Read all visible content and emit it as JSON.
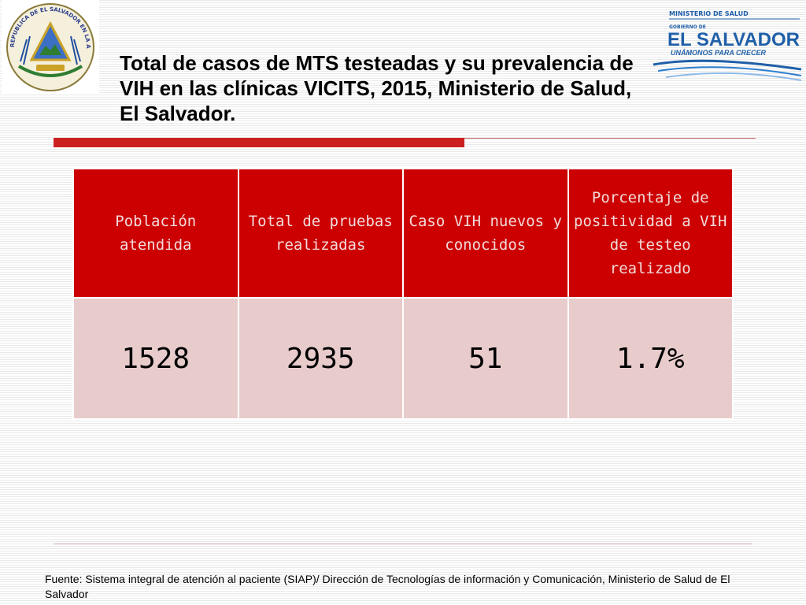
{
  "slide": {
    "title": "Total de casos de MTS testeadas  y su prevalencia de VIH en las clínicas VICITS, 2015, Ministerio de Salud, El Salvador.",
    "source": "Fuente: Sistema integral de atención al paciente (SIAP)/ Dirección de Tecnologías de información y Comunicación, Ministerio de Salud de El Salvador"
  },
  "logos": {
    "left": {
      "icon": "coat-of-arms-el-salvador",
      "text": "REPUBLICA DE EL SALVADOR EN LA AMERICA CENTRAL"
    },
    "right": {
      "ministry": "MINISTERIO DE SALUD",
      "gobierno": "GOBIERNO DE",
      "country": "EL SALVADOR",
      "slogan": "UNÁMONOS PARA CRECER"
    }
  },
  "table": {
    "headers": [
      "Población atendida",
      "Total de pruebas realizadas",
      "Caso VIH nuevos y conocidos",
      "Porcentaje de positividad  a VIH de testeo realizado"
    ],
    "row": [
      "1528",
      "2935",
      "51",
      "1.7%"
    ]
  },
  "colors": {
    "header_bg": "#cc0000",
    "header_text": "#f2dada",
    "cell_bg": "#e8cccc",
    "accent": "#cc1f1f",
    "logo_blue": "#1f5fa8"
  }
}
